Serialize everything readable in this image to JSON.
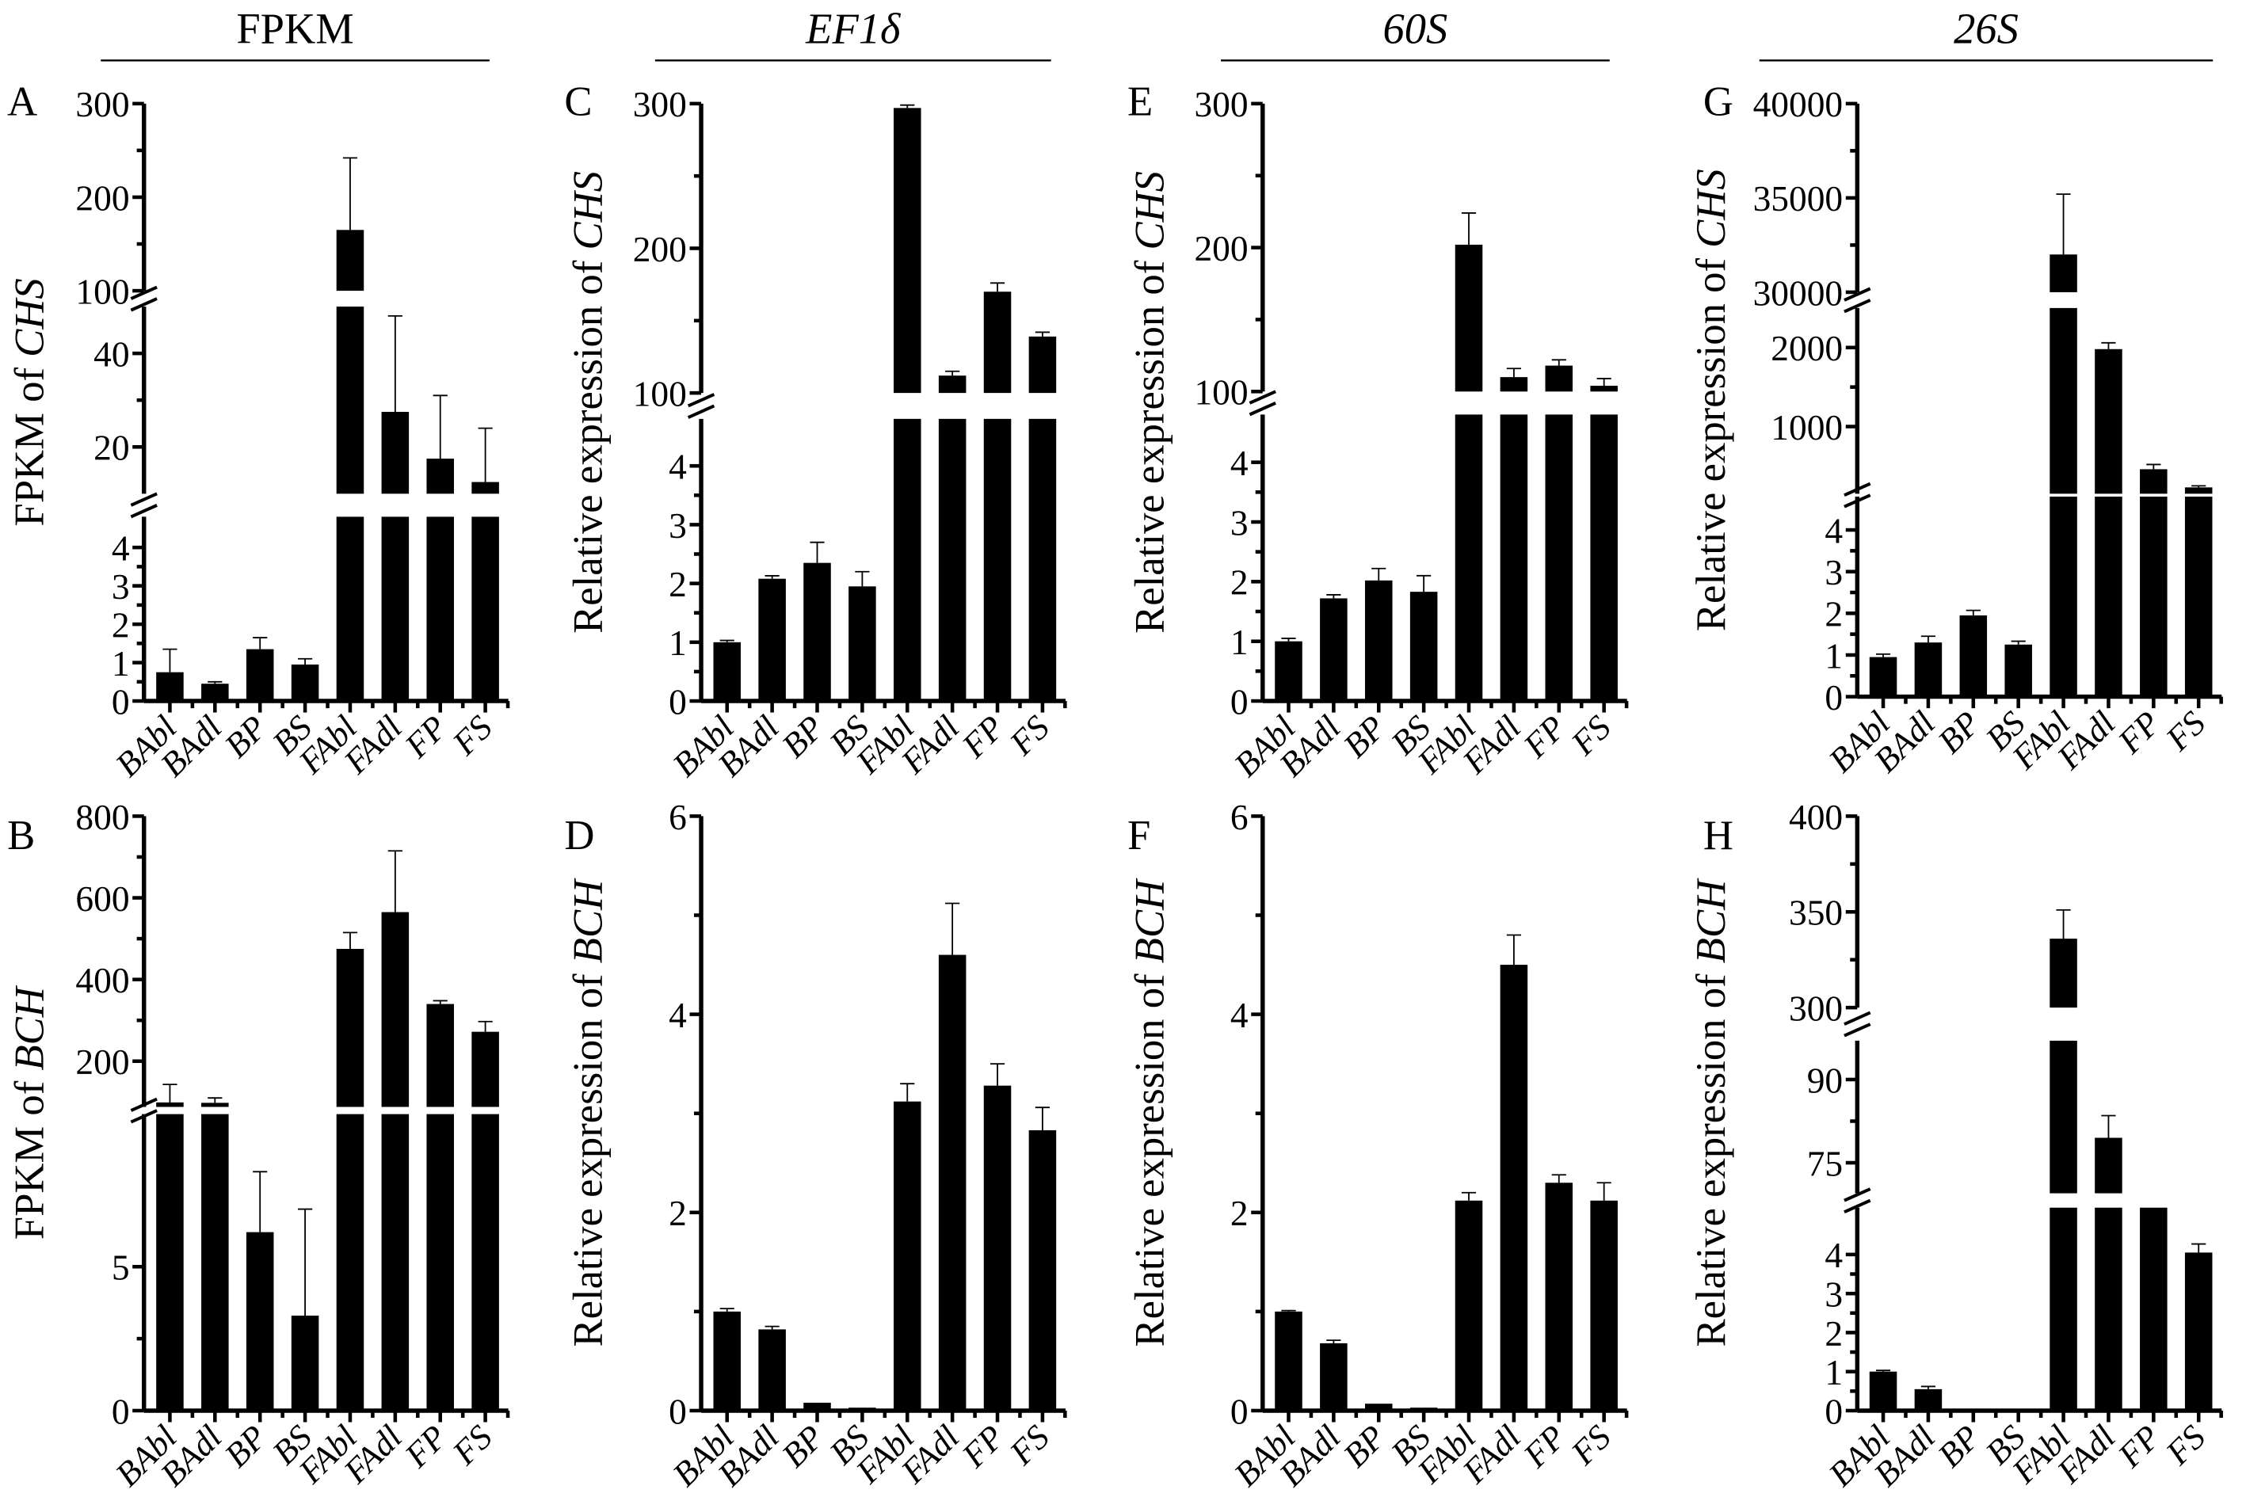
{
  "headers": [
    {
      "label": "FPKM",
      "italic": false
    },
    {
      "label": "EF1δ",
      "italic": true
    },
    {
      "label": "60S",
      "italic": true
    },
    {
      "label": "26S",
      "italic": true
    }
  ],
  "chart_data": [
    {
      "id": "A",
      "type": "bar",
      "title": "A",
      "ylabel_prefix": "FPKM of ",
      "ylabel_gene": "CHS",
      "categories": [
        "BAbl",
        "BAdl",
        "BP",
        "BS",
        "FAbl",
        "FAdl",
        "FP",
        "FS"
      ],
      "values": [
        0.75,
        0.45,
        1.35,
        0.95,
        165,
        27.5,
        17.5,
        12.5
      ],
      "errors": [
        0.6,
        0.05,
        0.3,
        0.15,
        77,
        20.5,
        13.5,
        11.5
      ],
      "segments": [
        {
          "range": [
            0,
            4.8
          ],
          "ticks": [
            0,
            1,
            2,
            3,
            4
          ]
        },
        {
          "range": [
            10,
            50
          ],
          "ticks": [
            20,
            40
          ]
        },
        {
          "range": [
            100,
            300
          ],
          "ticks": [
            100,
            200,
            300
          ]
        }
      ]
    },
    {
      "id": "C",
      "type": "bar",
      "title": "C",
      "ylabel_prefix": "Relative expression of ",
      "ylabel_gene": "CHS",
      "categories": [
        "BAbl",
        "BAdl",
        "BP",
        "BS",
        "FAbl",
        "FAdl",
        "FP",
        "FS"
      ],
      "values": [
        1.0,
        2.08,
        2.35,
        1.95,
        297,
        112,
        170,
        139
      ],
      "errors": [
        0.03,
        0.05,
        0.35,
        0.25,
        2,
        3,
        6,
        3
      ],
      "segments": [
        {
          "range": [
            0,
            4.8
          ],
          "ticks": [
            0,
            1,
            2,
            3,
            4
          ]
        },
        {
          "range": [
            100,
            300
          ],
          "ticks": [
            100,
            200,
            300
          ]
        }
      ]
    },
    {
      "id": "E",
      "type": "bar",
      "title": "E",
      "ylabel_prefix": "Relative expression of ",
      "ylabel_gene": "CHS",
      "categories": [
        "BAbl",
        "BAdl",
        "BP",
        "BS",
        "FAbl",
        "FAdl",
        "FP",
        "FS"
      ],
      "values": [
        1.0,
        1.72,
        2.02,
        1.83,
        202,
        110,
        118,
        104
      ],
      "errors": [
        0.05,
        0.06,
        0.2,
        0.27,
        22,
        6,
        4,
        5
      ],
      "segments": [
        {
          "range": [
            0,
            4.8
          ],
          "ticks": [
            0,
            1,
            2,
            3,
            4
          ]
        },
        {
          "range": [
            100,
            300
          ],
          "ticks": [
            100,
            200,
            300
          ]
        }
      ]
    },
    {
      "id": "G",
      "type": "bar",
      "title": "G",
      "ylabel_prefix": "Relative expression of ",
      "ylabel_gene": "CHS",
      "categories": [
        "BAbl",
        "BAdl",
        "BP",
        "BS",
        "FAbl",
        "FAdl",
        "FP",
        "FS"
      ],
      "values": [
        0.95,
        1.3,
        1.95,
        1.25,
        32000,
        1980,
        460,
        230
      ],
      "errors": [
        0.07,
        0.15,
        0.12,
        0.08,
        3200,
        80,
        60,
        20
      ],
      "segments": [
        {
          "range": [
            0,
            4.8
          ],
          "ticks": [
            0,
            1,
            2,
            3,
            4
          ]
        },
        {
          "range": [
            150,
            2500
          ],
          "ticks": [
            1000,
            2000
          ]
        },
        {
          "range": [
            30000,
            40000
          ],
          "ticks": [
            30000,
            35000,
            40000
          ]
        }
      ]
    },
    {
      "id": "B",
      "type": "bar",
      "title": "B",
      "ylabel_prefix": "FPKM of ",
      "ylabel_gene": "BCH",
      "categories": [
        "BAbl",
        "BAdl",
        "BP",
        "BS",
        "FAbl",
        "FAdl",
        "FP",
        "FS"
      ],
      "values": [
        99,
        98,
        6.2,
        3.3,
        475,
        565,
        340,
        272
      ],
      "errors": [
        44,
        12,
        2.1,
        3.7,
        40,
        150,
        8,
        25
      ],
      "segments": [
        {
          "range": [
            0,
            10.3
          ],
          "ticks": [
            0,
            5
          ]
        },
        {
          "range": [
            88,
            800
          ],
          "ticks": [
            200,
            400,
            600,
            800
          ]
        }
      ]
    },
    {
      "id": "D",
      "type": "bar",
      "title": "D",
      "ylabel_prefix": "Relative expression of ",
      "ylabel_gene": "BCH",
      "categories": [
        "BAbl",
        "BAdl",
        "BP",
        "BS",
        "FAbl",
        "FAdl",
        "FP",
        "FS"
      ],
      "values": [
        1.0,
        0.82,
        0.08,
        0.03,
        3.12,
        4.6,
        3.28,
        2.83
      ],
      "errors": [
        0.03,
        0.03,
        0,
        0,
        0.18,
        0.52,
        0.22,
        0.23
      ],
      "segments": [
        {
          "range": [
            0,
            6
          ],
          "ticks": [
            0,
            2,
            4,
            6
          ]
        }
      ]
    },
    {
      "id": "F",
      "type": "bar",
      "title": "F",
      "ylabel_prefix": "Relative expression of ",
      "ylabel_gene": "BCH",
      "categories": [
        "BAbl",
        "BAdl",
        "BP",
        "BS",
        "FAbl",
        "FAdl",
        "FP",
        "FS"
      ],
      "values": [
        1.0,
        0.68,
        0.07,
        0.03,
        2.12,
        4.5,
        2.3,
        2.12
      ],
      "errors": [
        0.01,
        0.03,
        0,
        0,
        0.08,
        0.3,
        0.08,
        0.18
      ],
      "segments": [
        {
          "range": [
            0,
            6
          ],
          "ticks": [
            0,
            2,
            4,
            6
          ]
        }
      ]
    },
    {
      "id": "H",
      "type": "bar",
      "title": "H",
      "ylabel_prefix": "Relative expression of ",
      "ylabel_gene": "BCH",
      "categories": [
        "BAbl",
        "BAdl",
        "BP",
        "BS",
        "FAbl",
        "FAdl",
        "FP",
        "FS"
      ],
      "values": [
        1.0,
        0.55,
        0.05,
        0.02,
        336,
        79.5,
        60,
        4.05
      ],
      "errors": [
        0.03,
        0.07,
        0,
        0,
        15,
        4,
        0,
        0.22
      ],
      "segments": [
        {
          "range": [
            0,
            5.2
          ],
          "ticks": [
            0,
            1,
            2,
            3,
            4
          ]
        },
        {
          "range": [
            69.5,
            97
          ],
          "ticks": [
            75,
            90
          ]
        },
        {
          "range": [
            300,
            400
          ],
          "ticks": [
            300,
            350,
            400
          ]
        }
      ]
    }
  ]
}
